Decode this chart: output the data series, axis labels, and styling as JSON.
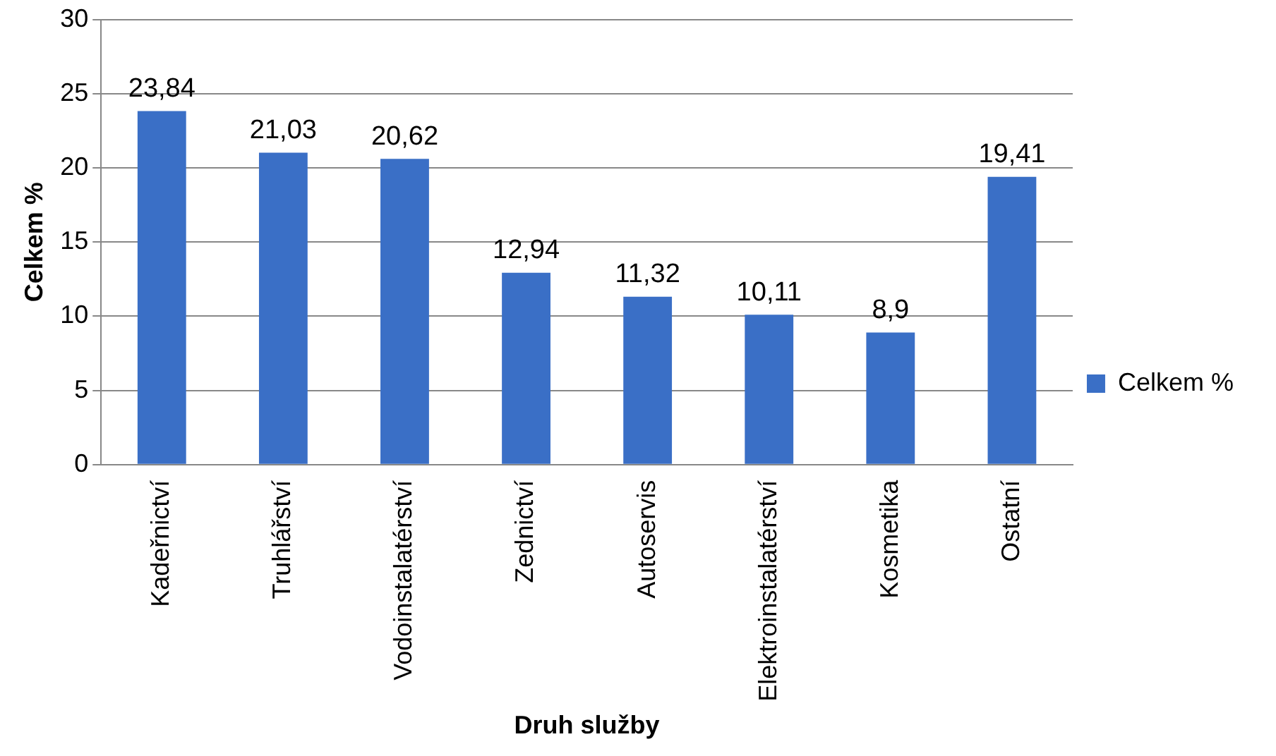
{
  "chart_data": {
    "type": "bar",
    "xlabel": "Druh služby",
    "ylabel": "Celkem %",
    "categories": [
      "Kadeřnictví",
      "Truhlářství",
      "Vodoinstalatérství",
      "Zednictví",
      "Autoservis",
      "Elektroinstalatérství",
      "Kosmetika",
      "Ostatní"
    ],
    "series": [
      {
        "name": "Celkem %",
        "color": "#3a6fc6",
        "values": [
          23.84,
          21.03,
          20.62,
          12.94,
          11.32,
          10.11,
          8.9,
          19.41
        ],
        "value_labels": [
          "23,84",
          "21,03",
          "20,62",
          "12,94",
          "11,32",
          "10,11",
          "8,9",
          "19,41"
        ]
      }
    ],
    "ylim": [
      0,
      30
    ],
    "yticks": [
      0,
      5,
      10,
      15,
      20,
      25,
      30
    ],
    "grid": "y",
    "legend": "right"
  }
}
